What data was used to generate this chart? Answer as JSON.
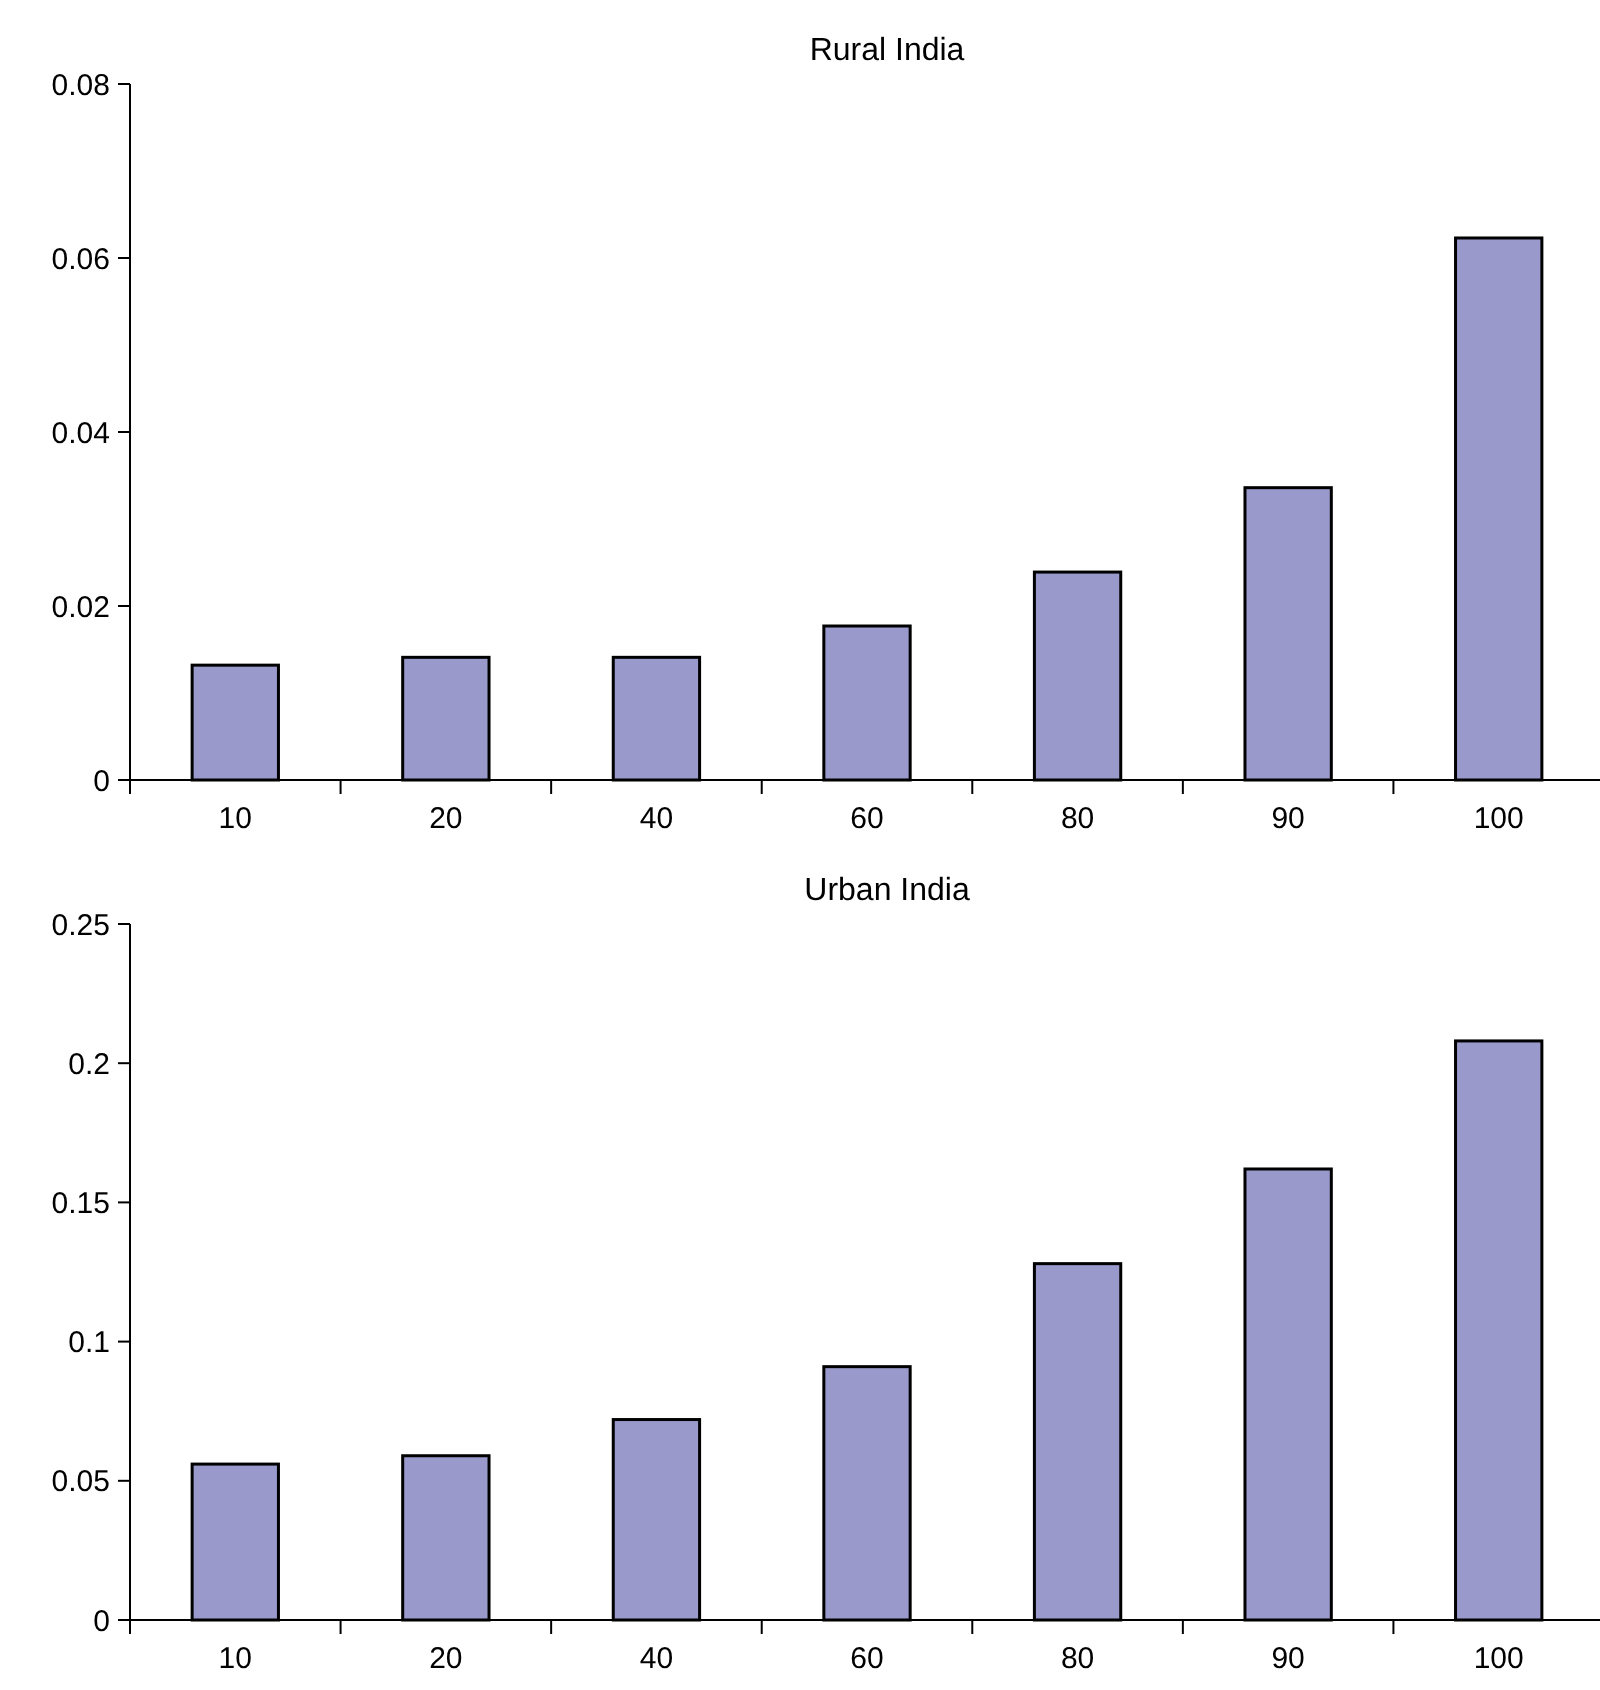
{
  "chart_data": [
    {
      "type": "bar",
      "title": "Rural India",
      "categories": [
        "10",
        "20",
        "40",
        "60",
        "80",
        "90",
        "100"
      ],
      "values": [
        0.0132,
        0.0141,
        0.0141,
        0.0177,
        0.0239,
        0.0336,
        0.0623
      ],
      "color": "#9999cc",
      "ylim": [
        0,
        0.08
      ],
      "yticks": [
        0,
        0.02,
        0.04,
        0.06,
        0.08
      ]
    },
    {
      "type": "bar",
      "title": "Urban India",
      "categories": [
        "10",
        "20",
        "40",
        "60",
        "80",
        "90",
        "100"
      ],
      "values": [
        0.056,
        0.059,
        0.072,
        0.091,
        0.128,
        0.162,
        0.208
      ],
      "color": "#9999cc",
      "ylim": [
        0,
        0.25
      ],
      "yticks": [
        0,
        0.05,
        0.1,
        0.15,
        0.2,
        0.25
      ]
    }
  ]
}
